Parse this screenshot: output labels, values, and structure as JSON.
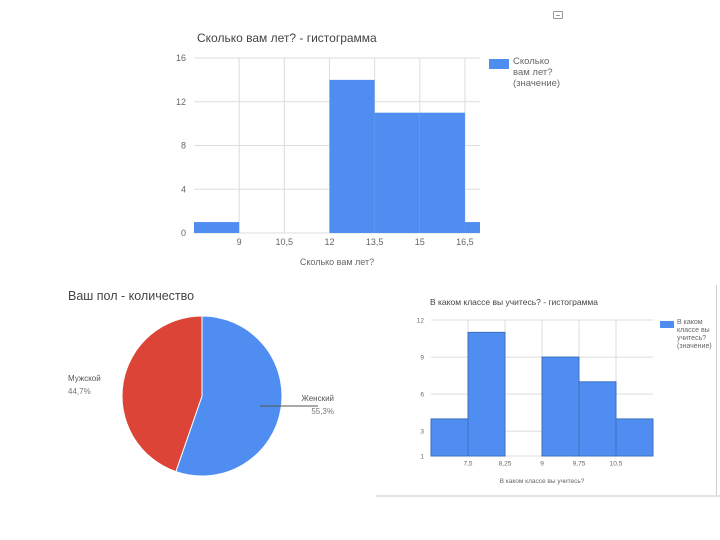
{
  "colors": {
    "bar": "#4f8ef0",
    "pie_male": "#db4437",
    "pie_female": "#4f8ef0",
    "grid": "#dddddd"
  },
  "chart_data": [
    {
      "type": "bar",
      "title": "Сколько вам лет? - гистограмма",
      "xlabel": "Сколько вам лет?",
      "ylabel": "",
      "ylim": [
        0,
        16
      ],
      "yticks": [
        "16",
        "12",
        "8",
        "4",
        "0"
      ],
      "xticks": [
        "9",
        "10,5",
        "12",
        "13,5",
        "15",
        "16,5"
      ],
      "legend": "Сколько вам лет? (значение)",
      "bins": [
        {
          "from": 7.5,
          "to": 9,
          "value": 1
        },
        {
          "from": 9,
          "to": 10.5,
          "value": 0
        },
        {
          "from": 10.5,
          "to": 12,
          "value": 0
        },
        {
          "from": 12,
          "to": 13.5,
          "value": 14
        },
        {
          "from": 13.5,
          "to": 15,
          "value": 11
        },
        {
          "from": 15,
          "to": 16.5,
          "value": 11
        },
        {
          "from": 16.5,
          "to": 17,
          "value": 1
        }
      ],
      "xlim": [
        7.5,
        17
      ]
    },
    {
      "type": "pie",
      "title": "Ваш пол - количество",
      "slices": [
        {
          "label": "Женский",
          "pct_label": "55,3%",
          "value": 55.3,
          "color": "#4f8ef0"
        },
        {
          "label": "Мужской",
          "pct_label": "44,7%",
          "value": 44.7,
          "color": "#db4437"
        }
      ]
    },
    {
      "type": "bar",
      "title": "В каком классе вы учитесь? - гистограмма",
      "xlabel": "В каком классе вы учитесь?",
      "ylabel": "",
      "ylim": [
        1,
        12
      ],
      "yticks": [
        "12",
        "9",
        "6",
        "3",
        "1"
      ],
      "xticks": [
        "7,5",
        "8,25",
        "9",
        "9,75",
        "10,5"
      ],
      "legend": "В каком классе вы учитесь? (значение)",
      "bins": [
        {
          "from": 6.75,
          "to": 7.5,
          "value": 4
        },
        {
          "from": 7.5,
          "to": 8.25,
          "value": 11
        },
        {
          "from": 8.25,
          "to": 9,
          "value": 0
        },
        {
          "from": 9,
          "to": 9.75,
          "value": 9
        },
        {
          "from": 9.75,
          "to": 10.5,
          "value": 7
        },
        {
          "from": 10.5,
          "to": 11.25,
          "value": 4
        }
      ],
      "xlim": [
        6.75,
        11.25
      ]
    }
  ]
}
